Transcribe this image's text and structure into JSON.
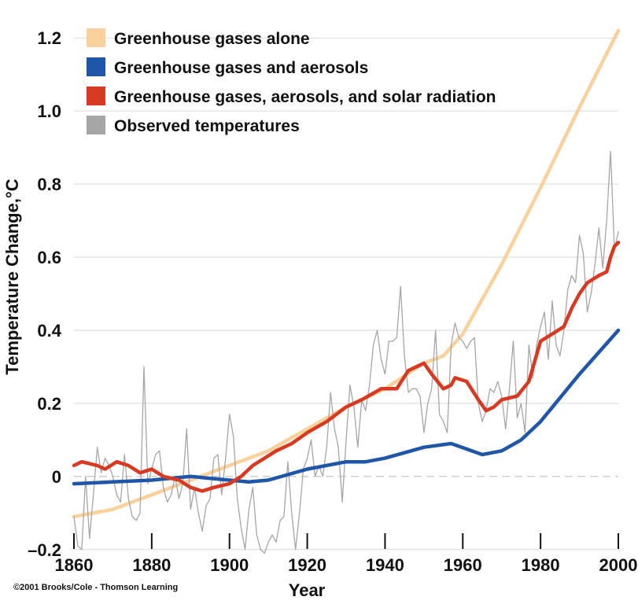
{
  "chart_data": {
    "type": "line",
    "xlabel": "Year",
    "ylabel": "Temperature Change,°C",
    "xlim": [
      1860,
      2000
    ],
    "ylim": [
      -0.25,
      1.25
    ],
    "x_ticks": [
      1860,
      1880,
      1900,
      1920,
      1940,
      1960,
      1980,
      2000
    ],
    "y_ticks": [
      {
        "value": -0.2,
        "label": "–0.2"
      },
      {
        "value": 0,
        "label": "0"
      },
      {
        "value": 0.2,
        "label": "0.2"
      },
      {
        "value": 0.4,
        "label": "0.4"
      },
      {
        "value": 0.6,
        "label": "0.6"
      },
      {
        "value": 0.8,
        "label": "0.8"
      },
      {
        "value": 1.0,
        "label": "1.0"
      },
      {
        "value": 1.2,
        "label": "1.2"
      }
    ],
    "zero_reference_line": true,
    "legend_position": "top-left",
    "credit": "©2001 Brooks/Cole - Thomson Learning",
    "series": [
      {
        "name": "Greenhouse gases alone",
        "color": "#f8d19c",
        "points": [
          [
            1860,
            -0.11
          ],
          [
            1870,
            -0.09
          ],
          [
            1880,
            -0.05
          ],
          [
            1890,
            -0.01
          ],
          [
            1900,
            0.03
          ],
          [
            1910,
            0.07
          ],
          [
            1920,
            0.13
          ],
          [
            1930,
            0.19
          ],
          [
            1940,
            0.24
          ],
          [
            1950,
            0.31
          ],
          [
            1955,
            0.33
          ],
          [
            1960,
            0.39
          ],
          [
            1970,
            0.58
          ],
          [
            1980,
            0.79
          ],
          [
            1990,
            1.01
          ],
          [
            2000,
            1.22
          ]
        ]
      },
      {
        "name": "Greenhouse gases and aerosols",
        "color": "#1f56a8",
        "points": [
          [
            1860,
            -0.02
          ],
          [
            1870,
            -0.015
          ],
          [
            1880,
            -0.01
          ],
          [
            1890,
            0.0
          ],
          [
            1895,
            -0.005
          ],
          [
            1900,
            -0.01
          ],
          [
            1905,
            -0.015
          ],
          [
            1910,
            -0.01
          ],
          [
            1920,
            0.02
          ],
          [
            1930,
            0.04
          ],
          [
            1935,
            0.04
          ],
          [
            1940,
            0.05
          ],
          [
            1950,
            0.08
          ],
          [
            1957,
            0.09
          ],
          [
            1965,
            0.06
          ],
          [
            1970,
            0.07
          ],
          [
            1975,
            0.1
          ],
          [
            1980,
            0.15
          ],
          [
            1990,
            0.28
          ],
          [
            2000,
            0.4
          ]
        ]
      },
      {
        "name": "Greenhouse gases, aerosols, and solar radiation",
        "color": "#d83a21",
        "points": [
          [
            1860,
            0.03
          ],
          [
            1862,
            0.04
          ],
          [
            1866,
            0.03
          ],
          [
            1868,
            0.02
          ],
          [
            1871,
            0.04
          ],
          [
            1874,
            0.03
          ],
          [
            1877,
            0.01
          ],
          [
            1880,
            0.02
          ],
          [
            1883,
            0.0
          ],
          [
            1887,
            -0.01
          ],
          [
            1890,
            -0.03
          ],
          [
            1893,
            -0.04
          ],
          [
            1896,
            -0.03
          ],
          [
            1900,
            -0.02
          ],
          [
            1903,
            0.0
          ],
          [
            1906,
            0.03
          ],
          [
            1909,
            0.05
          ],
          [
            1912,
            0.07
          ],
          [
            1916,
            0.09
          ],
          [
            1920,
            0.12
          ],
          [
            1925,
            0.15
          ],
          [
            1930,
            0.19
          ],
          [
            1934,
            0.21
          ],
          [
            1939,
            0.24
          ],
          [
            1943,
            0.24
          ],
          [
            1946,
            0.29
          ],
          [
            1950,
            0.31
          ],
          [
            1952,
            0.28
          ],
          [
            1955,
            0.24
          ],
          [
            1957,
            0.25
          ],
          [
            1958,
            0.27
          ],
          [
            1961,
            0.26
          ],
          [
            1964,
            0.21
          ],
          [
            1966,
            0.18
          ],
          [
            1968,
            0.19
          ],
          [
            1970,
            0.21
          ],
          [
            1974,
            0.22
          ],
          [
            1977,
            0.26
          ],
          [
            1980,
            0.37
          ],
          [
            1983,
            0.39
          ],
          [
            1986,
            0.41
          ],
          [
            1988,
            0.46
          ],
          [
            1990,
            0.5
          ],
          [
            1992,
            0.53
          ],
          [
            1995,
            0.55
          ],
          [
            1997,
            0.56
          ],
          [
            1998,
            0.6
          ],
          [
            1999,
            0.63
          ],
          [
            2000,
            0.64
          ]
        ]
      },
      {
        "name": "Observed temperatures",
        "color": "#a6a6a6",
        "points": [
          [
            1860,
            -0.11
          ],
          [
            1861,
            -0.19
          ],
          [
            1862,
            -0.2
          ],
          [
            1863,
            0.0
          ],
          [
            1864,
            -0.17
          ],
          [
            1865,
            -0.05
          ],
          [
            1866,
            0.08
          ],
          [
            1867,
            0.01
          ],
          [
            1868,
            0.05
          ],
          [
            1869,
            0.03
          ],
          [
            1870,
            0.0
          ],
          [
            1871,
            -0.05
          ],
          [
            1872,
            -0.07
          ],
          [
            1873,
            0.06
          ],
          [
            1874,
            -0.06
          ],
          [
            1875,
            -0.11
          ],
          [
            1876,
            -0.12
          ],
          [
            1877,
            -0.1
          ],
          [
            1878,
            0.3
          ],
          [
            1879,
            -0.02
          ],
          [
            1880,
            0.02
          ],
          [
            1881,
            0.06
          ],
          [
            1882,
            0.07
          ],
          [
            1883,
            -0.03
          ],
          [
            1884,
            -0.07
          ],
          [
            1885,
            -0.05
          ],
          [
            1886,
            0.0
          ],
          [
            1887,
            -0.06
          ],
          [
            1888,
            -0.02
          ],
          [
            1889,
            0.13
          ],
          [
            1890,
            -0.09
          ],
          [
            1891,
            -0.03
          ],
          [
            1892,
            -0.1
          ],
          [
            1893,
            -0.15
          ],
          [
            1894,
            -0.08
          ],
          [
            1895,
            -0.06
          ],
          [
            1896,
            0.05
          ],
          [
            1897,
            0.06
          ],
          [
            1898,
            -0.05
          ],
          [
            1899,
            0.05
          ],
          [
            1900,
            0.17
          ],
          [
            1901,
            0.11
          ],
          [
            1902,
            -0.06
          ],
          [
            1903,
            -0.14
          ],
          [
            1904,
            -0.2
          ],
          [
            1905,
            -0.09
          ],
          [
            1906,
            -0.03
          ],
          [
            1907,
            -0.16
          ],
          [
            1908,
            -0.2
          ],
          [
            1909,
            -0.21
          ],
          [
            1910,
            -0.18
          ],
          [
            1911,
            -0.16
          ],
          [
            1912,
            -0.18
          ],
          [
            1913,
            -0.12
          ],
          [
            1914,
            -0.11
          ],
          [
            1915,
            0.04
          ],
          [
            1916,
            -0.1
          ],
          [
            1917,
            -0.2
          ],
          [
            1918,
            -0.1
          ],
          [
            1919,
            0.02
          ],
          [
            1920,
            0.05
          ],
          [
            1921,
            0.1
          ],
          [
            1922,
            0.0
          ],
          [
            1923,
            0.03
          ],
          [
            1924,
            0.0
          ],
          [
            1925,
            0.08
          ],
          [
            1926,
            0.23
          ],
          [
            1927,
            0.13
          ],
          [
            1928,
            0.08
          ],
          [
            1929,
            -0.07
          ],
          [
            1930,
            0.1
          ],
          [
            1931,
            0.25
          ],
          [
            1932,
            0.19
          ],
          [
            1933,
            0.08
          ],
          [
            1934,
            0.21
          ],
          [
            1935,
            0.18
          ],
          [
            1936,
            0.25
          ],
          [
            1937,
            0.36
          ],
          [
            1938,
            0.4
          ],
          [
            1939,
            0.32
          ],
          [
            1940,
            0.28
          ],
          [
            1941,
            0.37
          ],
          [
            1942,
            0.37
          ],
          [
            1943,
            0.38
          ],
          [
            1944,
            0.52
          ],
          [
            1945,
            0.33
          ],
          [
            1946,
            0.23
          ],
          [
            1947,
            0.24
          ],
          [
            1948,
            0.24
          ],
          [
            1949,
            0.22
          ],
          [
            1950,
            0.12
          ],
          [
            1951,
            0.2
          ],
          [
            1952,
            0.24
          ],
          [
            1953,
            0.4
          ],
          [
            1954,
            0.17
          ],
          [
            1955,
            0.15
          ],
          [
            1956,
            0.12
          ],
          [
            1957,
            0.36
          ],
          [
            1958,
            0.42
          ],
          [
            1959,
            0.38
          ],
          [
            1960,
            0.37
          ],
          [
            1961,
            0.35
          ],
          [
            1962,
            0.37
          ],
          [
            1963,
            0.38
          ],
          [
            1964,
            0.2
          ],
          [
            1965,
            0.15
          ],
          [
            1966,
            0.18
          ],
          [
            1967,
            0.24
          ],
          [
            1968,
            0.23
          ],
          [
            1969,
            0.26
          ],
          [
            1970,
            0.22
          ],
          [
            1971,
            0.13
          ],
          [
            1972,
            0.24
          ],
          [
            1973,
            0.37
          ],
          [
            1974,
            0.16
          ],
          [
            1975,
            0.2
          ],
          [
            1976,
            0.12
          ],
          [
            1977,
            0.36
          ],
          [
            1978,
            0.27
          ],
          [
            1979,
            0.36
          ],
          [
            1980,
            0.41
          ],
          [
            1981,
            0.45
          ],
          [
            1982,
            0.32
          ],
          [
            1983,
            0.48
          ],
          [
            1984,
            0.36
          ],
          [
            1985,
            0.33
          ],
          [
            1986,
            0.4
          ],
          [
            1987,
            0.51
          ],
          [
            1988,
            0.55
          ],
          [
            1989,
            0.53
          ],
          [
            1990,
            0.66
          ],
          [
            1991,
            0.61
          ],
          [
            1992,
            0.45
          ],
          [
            1993,
            0.5
          ],
          [
            1994,
            0.58
          ],
          [
            1995,
            0.68
          ],
          [
            1996,
            0.57
          ],
          [
            1997,
            0.7
          ],
          [
            1998,
            0.89
          ],
          [
            1999,
            0.62
          ],
          [
            2000,
            0.67
          ]
        ]
      }
    ]
  }
}
